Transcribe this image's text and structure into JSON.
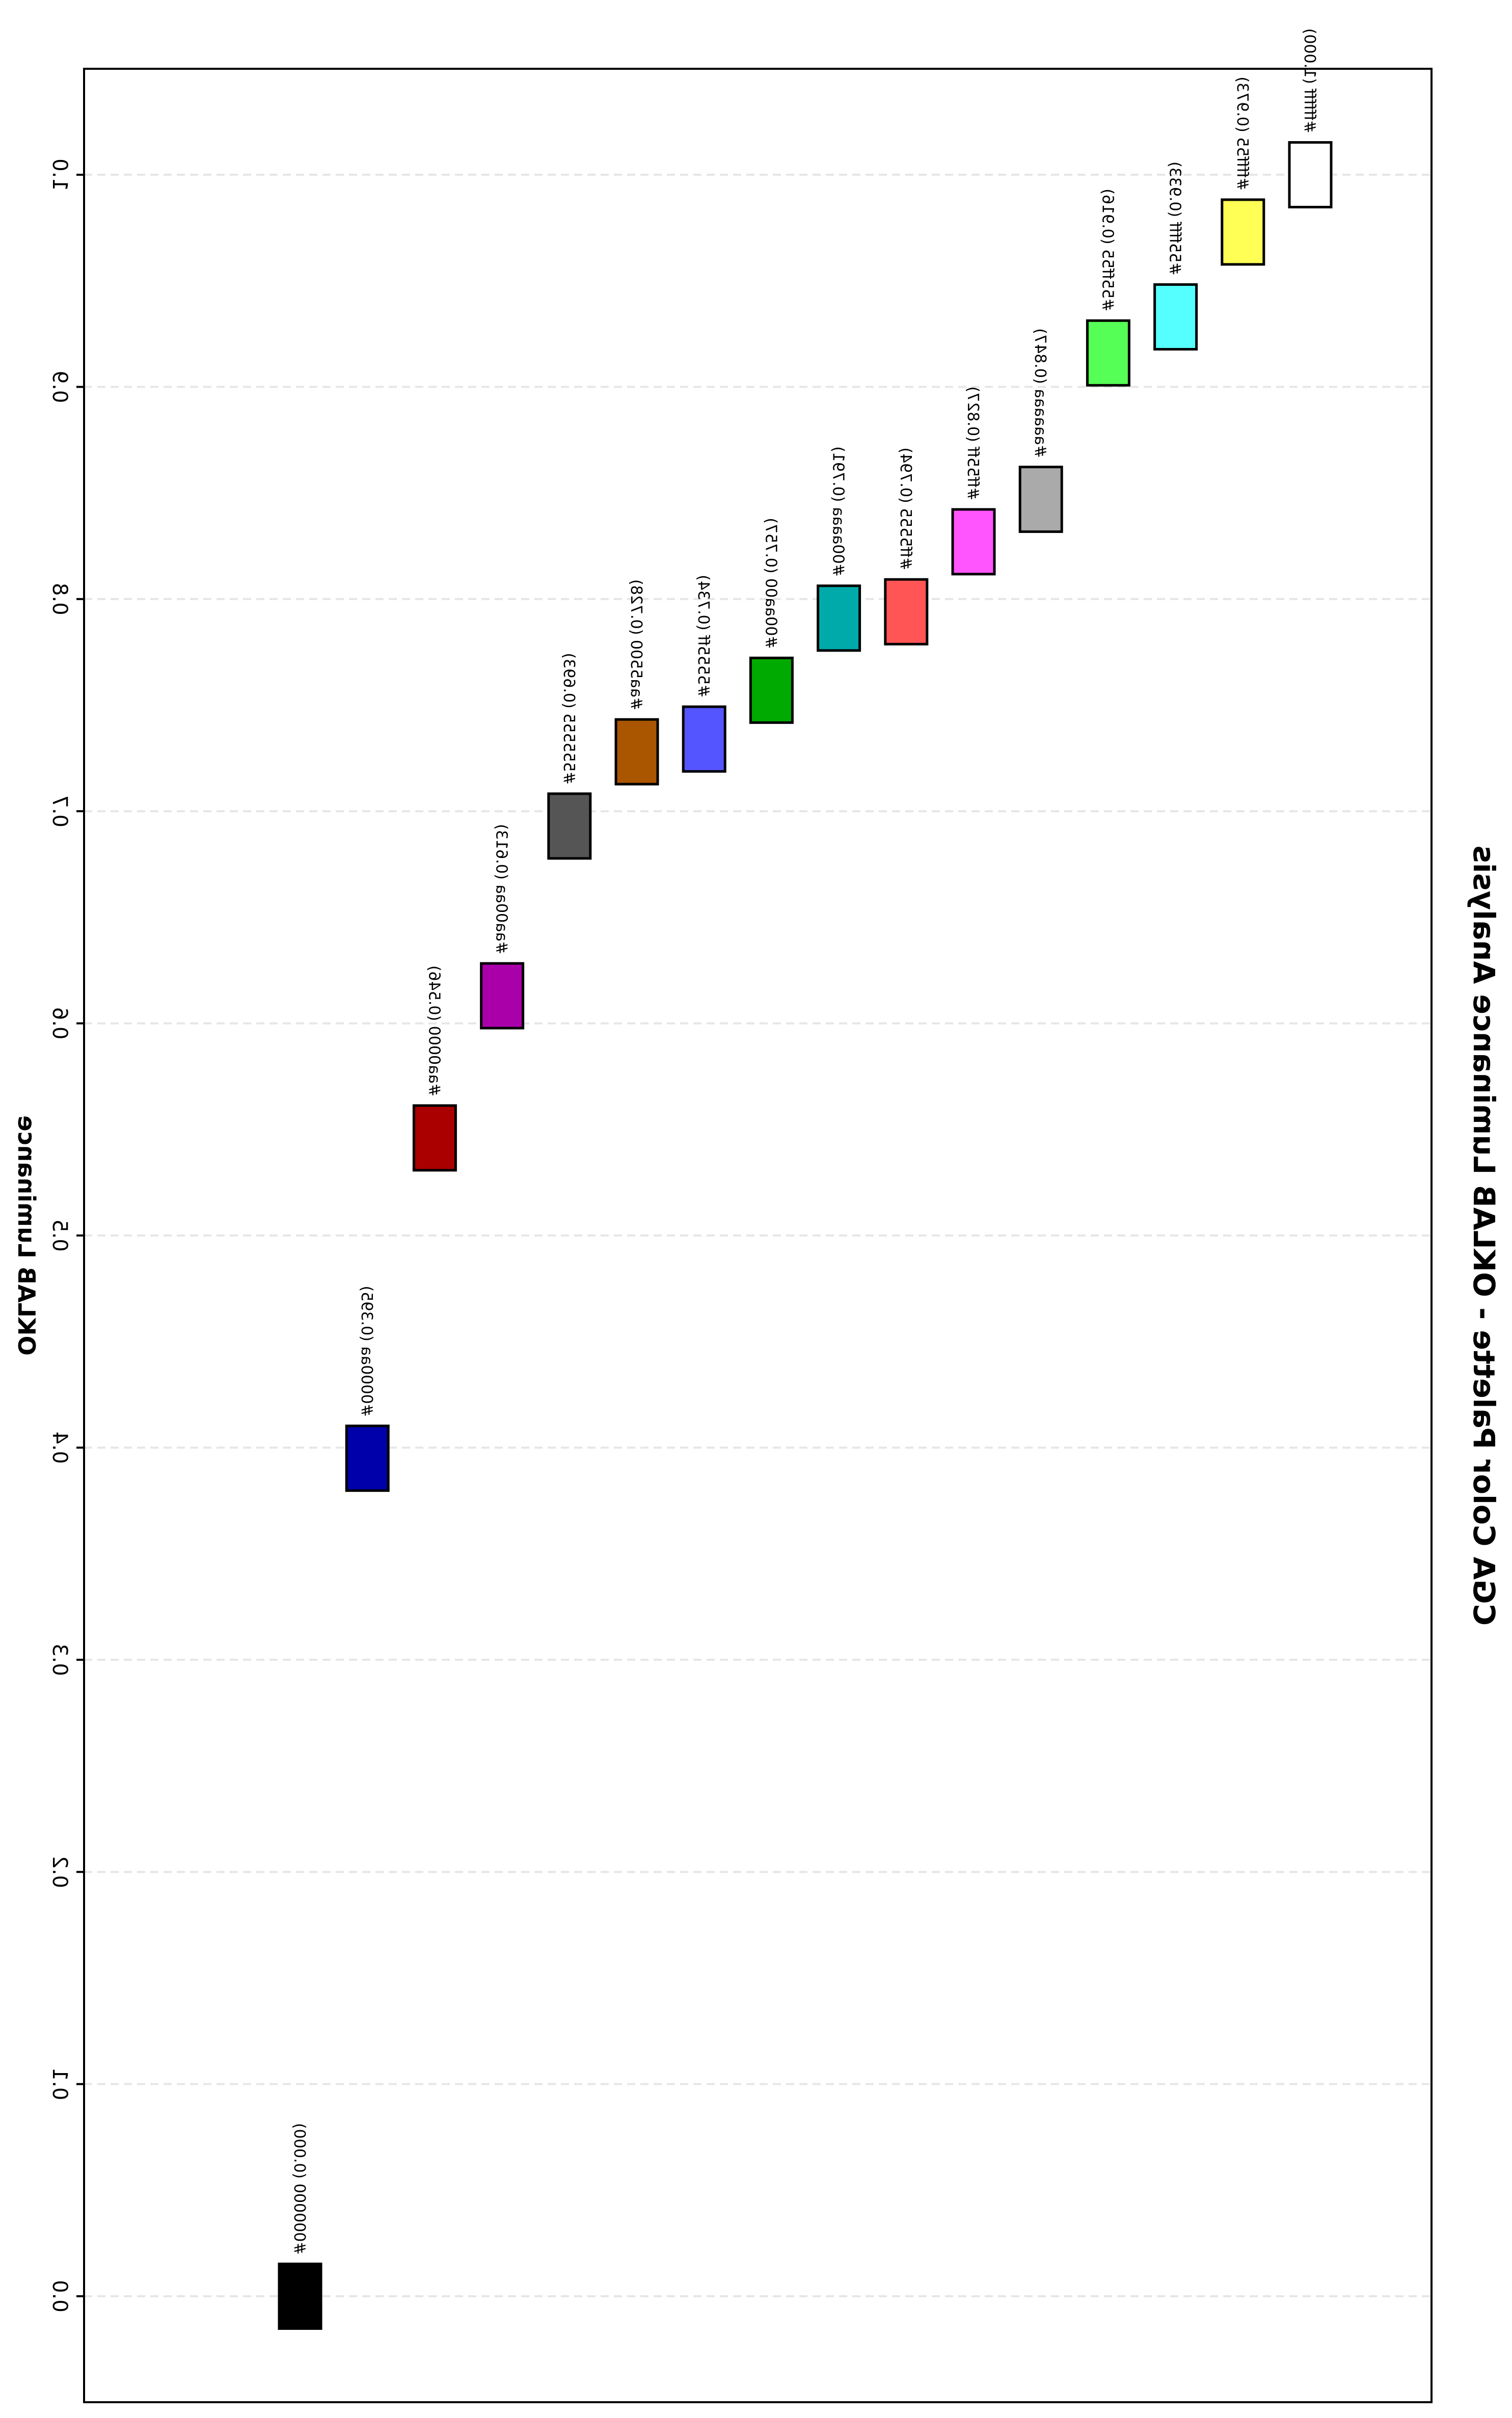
{
  "chart_data": {
    "type": "scatter",
    "title": "CGA Color Palette - OKLAB Luminance Analysis",
    "ylabel": "OKLAB Luminance",
    "xlabel": "",
    "ylim": [
      -0.06,
      1.05
    ],
    "yticks": [
      "0.0",
      "0.1",
      "0.2",
      "0.3",
      "0.4",
      "0.5",
      "0.6",
      "0.7",
      "0.8",
      "0.9",
      "1.0"
    ],
    "ytick_values": [
      0.0,
      0.1,
      0.2,
      0.3,
      0.4,
      0.5,
      0.6,
      0.7,
      0.8,
      0.9,
      1.0
    ],
    "grid": "dashed horizontal",
    "points": [
      {
        "color": "#000000",
        "value": 0.0,
        "label": "#000000 (0.000)"
      },
      {
        "color": "#0000aa",
        "value": 0.395,
        "label": "#0000aa (0.395)"
      },
      {
        "color": "#aa0000",
        "value": 0.546,
        "label": "#aa0000 (0.546)"
      },
      {
        "color": "#aa00aa",
        "value": 0.613,
        "label": "#aa00aa (0.613)"
      },
      {
        "color": "#555555",
        "value": 0.693,
        "label": "#555555 (0.693)"
      },
      {
        "color": "#aa5500",
        "value": 0.728,
        "label": "#aa5500 (0.728)"
      },
      {
        "color": "#5555ff",
        "value": 0.734,
        "label": "#5555ff (0.734)"
      },
      {
        "color": "#00aa00",
        "value": 0.757,
        "label": "#00aa00 (0.757)"
      },
      {
        "color": "#00aaaa",
        "value": 0.791,
        "label": "#00aaaa (0.791)"
      },
      {
        "color": "#ff5555",
        "value": 0.794,
        "label": "#ff5555 (0.794)"
      },
      {
        "color": "#ff55ff",
        "value": 0.827,
        "label": "#ff55ff (0.827)"
      },
      {
        "color": "#aaaaaa",
        "value": 0.847,
        "label": "#aaaaaa (0.847)"
      },
      {
        "color": "#55ff55",
        "value": 0.916,
        "label": "#55ff55 (0.916)"
      },
      {
        "color": "#55ffff",
        "value": 0.933,
        "label": "#55ffff (0.933)"
      },
      {
        "color": "#ffff55",
        "value": 0.973,
        "label": "#ffff55 (0.973)"
      },
      {
        "color": "#ffffff",
        "value": 1.0,
        "label": "#ffffff (1.000)"
      }
    ]
  }
}
